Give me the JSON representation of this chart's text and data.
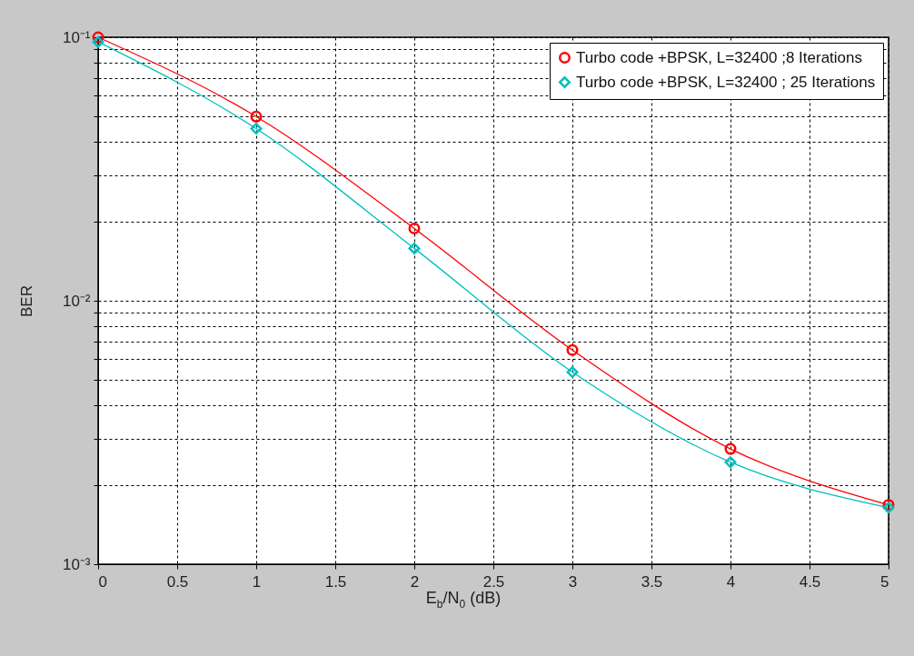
{
  "chart_data": {
    "type": "line",
    "xlabel": "E$_{b}$/N$_{0}$ (dB)",
    "ylabel": "BER",
    "x": [
      0,
      1,
      2,
      3,
      4,
      5
    ],
    "series": [
      {
        "name": "Turbo code +BPSK, L=32400 ;8 Iterations",
        "color": "#ff0000",
        "marker": "circle",
        "values": [
          0.1,
          0.05,
          0.0188,
          0.0065,
          0.00274,
          0.00168
        ]
      },
      {
        "name": "Turbo code +BPSK, L=32400 ; 25 Iterations",
        "color": "#00bfbf",
        "marker": "diamond",
        "values": [
          0.096,
          0.045,
          0.0158,
          0.00536,
          0.00244,
          0.00164
        ]
      }
    ],
    "log": "y",
    "xlim": [
      0,
      5
    ],
    "xticks": [
      0,
      0.5,
      1,
      1.5,
      2,
      2.5,
      3,
      3.5,
      4,
      4.5,
      5
    ],
    "ylim": [
      0.001,
      0.1
    ],
    "yticks": [
      {
        "value": 0.001,
        "label": "10⁻³"
      },
      {
        "value": 0.002,
        "label": null
      },
      {
        "value": 0.003,
        "label": null
      },
      {
        "value": 0.004,
        "label": null
      },
      {
        "value": 0.005,
        "label": null
      },
      {
        "value": 0.006,
        "label": null
      },
      {
        "value": 0.007,
        "label": null
      },
      {
        "value": 0.008,
        "label": null
      },
      {
        "value": 0.009,
        "label": null
      },
      {
        "value": 0.01,
        "label": "10⁻²"
      },
      {
        "value": 0.02,
        "label": null
      },
      {
        "value": 0.03,
        "label": null
      },
      {
        "value": 0.04,
        "label": null
      },
      {
        "value": 0.05,
        "label": null
      },
      {
        "value": 0.06,
        "label": null
      },
      {
        "value": 0.07,
        "label": null
      },
      {
        "value": 0.08,
        "label": null
      },
      {
        "value": 0.09,
        "label": null
      },
      {
        "value": 0.1,
        "label": "10⁻¹"
      }
    ],
    "grid": true,
    "legend": "top right",
    "line_style": "solid"
  }
}
